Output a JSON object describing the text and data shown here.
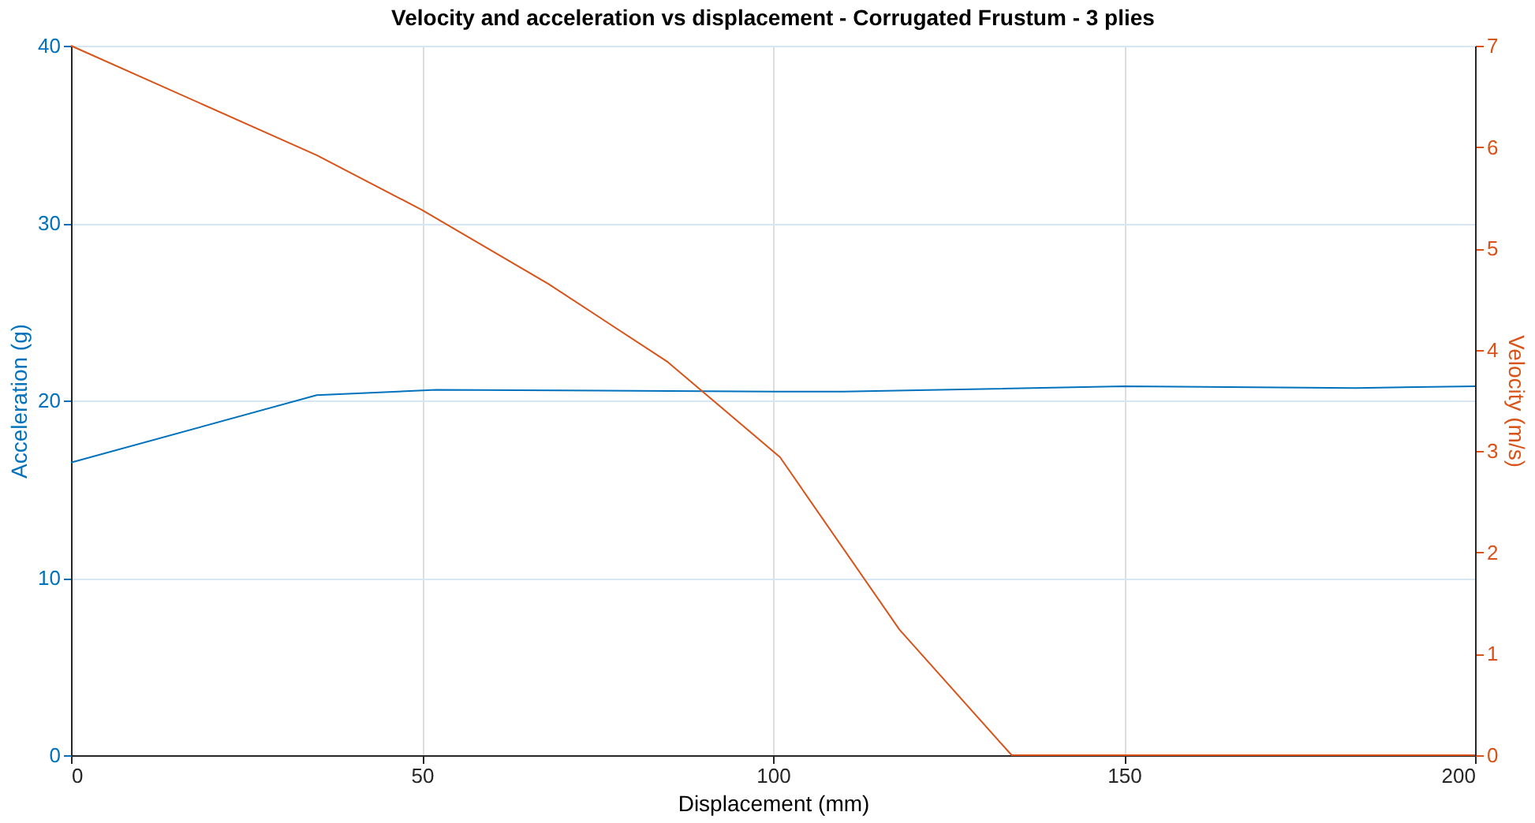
{
  "chart_data": {
    "type": "line",
    "title": "Velocity and acceleration vs displacement - Corrugated Frustum - 3 plies",
    "xlabel": "Displacement (mm)",
    "ylabel": "Acceleration (g)",
    "y2label": "Velocity (m/s)",
    "xlim": [
      0,
      200
    ],
    "xticks": [
      0,
      50,
      100,
      150,
      200
    ],
    "ylim": [
      0,
      40
    ],
    "yticks": [
      0,
      10,
      20,
      30,
      40
    ],
    "y2lim": [
      0,
      7
    ],
    "y2ticks": [
      0,
      1,
      2,
      3,
      4,
      5,
      6,
      7
    ],
    "grid": true,
    "series": [
      {
        "color": "#0072bd",
        "x": [
          0,
          35,
          52,
          100,
          110,
          150,
          183,
          200
        ],
        "values": [
          16.5,
          20.3,
          20.6,
          20.5,
          20.5,
          20.8,
          20.7,
          20.8
        ]
      },
      {
        "color": "#d95319",
        "axis": "y2",
        "x": [
          0,
          35,
          50,
          68,
          85,
          101,
          118,
          134,
          200
        ],
        "values": [
          7,
          5.92,
          5.38,
          4.65,
          3.88,
          2.94,
          1.24,
          0,
          0
        ]
      }
    ]
  }
}
